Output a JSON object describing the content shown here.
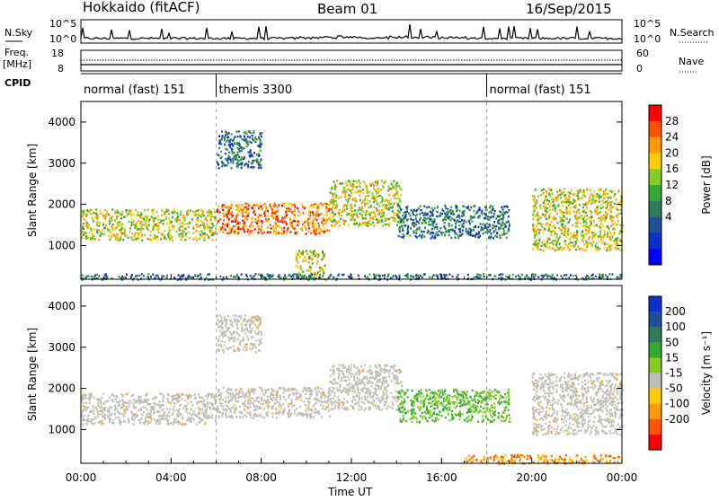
{
  "header": {
    "station": "Hokkaido (fitACF)",
    "beam": "Beam 01",
    "date": "16/Sep/2015"
  },
  "strip": {
    "nsky_label": "N.Sky",
    "nsky_ticks": [
      "10^5",
      "10^0"
    ],
    "nsearch_label": "N.Search",
    "nsearch_ticks": [
      "10^5",
      "10^0"
    ],
    "freq_label": "Freq.",
    "freq_unit": "[MHz]",
    "freq_ticks": [
      "18",
      "8"
    ],
    "nave_label": "Nave",
    "nave_ticks": [
      "60",
      "0"
    ],
    "cpid_label": "CPID",
    "cpid_segments": [
      {
        "label": "normal (fast) 151",
        "start_hour": 0,
        "end_hour": 6
      },
      {
        "label": "themis 3300",
        "start_hour": 6,
        "end_hour": 18
      },
      {
        "label": "normal (fast) 151",
        "start_hour": 18,
        "end_hour": 24
      }
    ]
  },
  "chart_data": [
    {
      "type": "heatmap",
      "panel": "power",
      "ylabel": "Slant Range [km]",
      "xlabel": "Time UT",
      "xlim_hours": [
        0,
        24
      ],
      "ylim_km": [
        180,
        4500
      ],
      "xticks": [
        "00:00",
        "04:00",
        "08:00",
        "12:00",
        "16:00",
        "20:00",
        "00:00"
      ],
      "yticks": [
        1000,
        2000,
        3000,
        4000
      ],
      "colorbar_label": "Power [dB]",
      "colorbar_ticks": [
        "28",
        "24",
        "20",
        "16",
        "12",
        "8",
        "4"
      ],
      "colorbar_colors": [
        "#ff0000",
        "#ff5500",
        "#ff9900",
        "#ffcc00",
        "#88cc22",
        "#33aa33",
        "#2f7a5a",
        "#205099",
        "#1030cc",
        "#0000ff"
      ],
      "bands": [
        {
          "t0": 0.0,
          "t1": 6.0,
          "r0": 1150,
          "r1": 1900,
          "level": "mid"
        },
        {
          "t0": 6.0,
          "t1": 11.0,
          "r0": 1300,
          "r1": 2050,
          "level": "high"
        },
        {
          "t0": 11.0,
          "t1": 14.2,
          "r0": 1500,
          "r1": 2600,
          "level": "mid"
        },
        {
          "t0": 6.0,
          "t1": 8.0,
          "r0": 2900,
          "r1": 3800,
          "level": "low"
        },
        {
          "t0": 9.5,
          "t1": 10.8,
          "r0": 200,
          "r1": 900,
          "level": "mid"
        },
        {
          "t0": 14.0,
          "t1": 19.0,
          "r0": 1200,
          "r1": 2000,
          "level": "low"
        },
        {
          "t0": 20.0,
          "t1": 24.0,
          "r0": 900,
          "r1": 2400,
          "level": "mid"
        },
        {
          "t0": 0.0,
          "t1": 24.0,
          "r0": 190,
          "r1": 330,
          "level": "low"
        }
      ]
    },
    {
      "type": "heatmap",
      "panel": "velocity",
      "ylabel": "Slant Range [km]",
      "xlabel": "Time UT",
      "xlim_hours": [
        0,
        24
      ],
      "ylim_km": [
        180,
        4500
      ],
      "xticks": [
        "00:00",
        "04:00",
        "08:00",
        "12:00",
        "16:00",
        "20:00",
        "00:00"
      ],
      "yticks": [
        1000,
        2000,
        3000,
        4000
      ],
      "colorbar_label": "Velocity [m s⁻¹]",
      "colorbar_ticks": [
        "200",
        "100",
        "50",
        "15",
        "-15",
        "-50",
        "-100",
        "-200"
      ],
      "colorbar_colors": [
        "#1030cc",
        "#205099",
        "#2f7a5a",
        "#33aa33",
        "#88cc22",
        "#c0c0b8",
        "#ffcc00",
        "#ff9900",
        "#ff5500",
        "#ff0000"
      ],
      "bands": [
        {
          "t0": 0.0,
          "t1": 6.0,
          "r0": 1150,
          "r1": 1900,
          "level": "ground"
        },
        {
          "t0": 6.0,
          "t1": 11.0,
          "r0": 1300,
          "r1": 2050,
          "level": "ground"
        },
        {
          "t0": 11.0,
          "t1": 14.2,
          "r0": 1500,
          "r1": 2600,
          "level": "ground"
        },
        {
          "t0": 6.0,
          "t1": 8.0,
          "r0": 2900,
          "r1": 3800,
          "level": "ground"
        },
        {
          "t0": 14.0,
          "t1": 19.0,
          "r0": 1200,
          "r1": 2000,
          "level": "positive"
        },
        {
          "t0": 20.0,
          "t1": 24.0,
          "r0": 900,
          "r1": 2400,
          "level": "ground"
        },
        {
          "t0": 17.0,
          "t1": 24.0,
          "r0": 190,
          "r1": 400,
          "level": "negative"
        }
      ]
    }
  ]
}
